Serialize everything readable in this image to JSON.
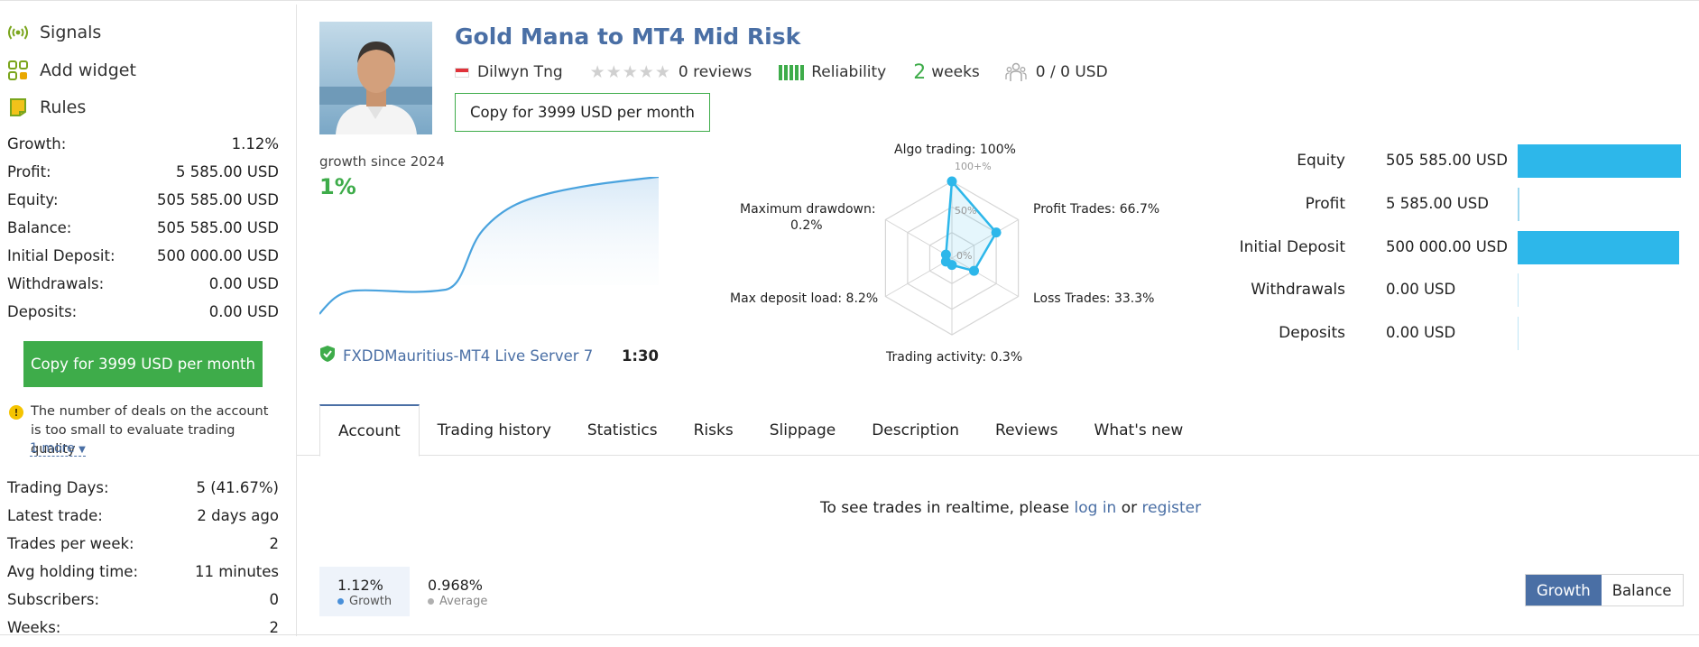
{
  "sidebar": {
    "nav": [
      {
        "label": "Signals",
        "icon": "signal-icon"
      },
      {
        "label": "Add widget",
        "icon": "widget-icon"
      },
      {
        "label": "Rules",
        "icon": "rules-icon"
      }
    ],
    "stats": [
      {
        "label": "Growth:",
        "value": "1.12%"
      },
      {
        "label": "Profit:",
        "value": "5 585.00 USD"
      },
      {
        "label": "Equity:",
        "value": "505 585.00 USD"
      },
      {
        "label": "Balance:",
        "value": "505 585.00 USD"
      },
      {
        "label": "Initial Deposit:",
        "value": "500 000.00 USD"
      },
      {
        "label": "Withdrawals:",
        "value": "0.00 USD"
      },
      {
        "label": "Deposits:",
        "value": "0.00 USD"
      }
    ],
    "copy_button": "Copy for 3999 USD per month",
    "warning": "The number of deals on the account is too small to evaluate trading quality",
    "more_link": "1 more",
    "stats2": [
      {
        "label": "Trading Days:",
        "value": "5 (41.67%)"
      },
      {
        "label": "Latest trade:",
        "value": "2 days ago"
      },
      {
        "label": "Trades per week:",
        "value": "2"
      },
      {
        "label": "Avg holding time:",
        "value": "11 minutes"
      },
      {
        "label": "Subscribers:",
        "value": "0"
      },
      {
        "label": "Weeks:",
        "value": "2"
      }
    ]
  },
  "header": {
    "title": "Gold Mana to MT4 Mid Risk",
    "author": "Dilwyn Tng",
    "reviews": "0 reviews",
    "reliability": "Reliability",
    "weeks_num": "2",
    "weeks_label": "weeks",
    "subscribers_funds": "0 / 0 USD",
    "copy_button": "Copy for 3999 USD per month"
  },
  "growth": {
    "label": "growth since 2024",
    "value": "1%",
    "server": "FXDDMauritius-MT4 Live Server 7",
    "leverage": "1:30"
  },
  "radar": {
    "labels": {
      "algo": "Algo trading: 100%",
      "profit": "Profit Trades: 66.7%",
      "loss": "Loss Trades: 33.3%",
      "activity": "Trading activity: 0.3%",
      "load": "Max deposit load: 8.2%",
      "drawdown1": "Maximum drawdown:",
      "drawdown2": "0.2%"
    },
    "scale": {
      "top": "100+%",
      "mid": "50%",
      "zero": "0%"
    },
    "values": [
      1.0,
      0.667,
      0.333,
      0.003,
      0.082,
      0.002
    ],
    "color": "#2db7ea"
  },
  "bars": [
    {
      "name": "Equity",
      "value": "505 585.00 USD",
      "fraction": 1.0
    },
    {
      "name": "Profit",
      "value": "5 585.00 USD",
      "fraction": 0.011
    },
    {
      "name": "Initial Deposit",
      "value": "500 000.00 USD",
      "fraction": 0.989
    },
    {
      "name": "Withdrawals",
      "value": "0.00 USD",
      "fraction": 0
    },
    {
      "name": "Deposits",
      "value": "0.00 USD",
      "fraction": 0
    }
  ],
  "tabs": [
    "Account",
    "Trading history",
    "Statistics",
    "Risks",
    "Slippage",
    "Description",
    "Reviews",
    "What's new"
  ],
  "realtime": {
    "prefix": "To see trades in realtime, please ",
    "login": "log in",
    "or": " or ",
    "register": "register"
  },
  "legend": {
    "growth_value": "1.12%",
    "growth_label": "Growth",
    "avg_value": "0.968%",
    "avg_label": "Average"
  },
  "toggle": {
    "growth": "Growth",
    "balance": "Balance"
  },
  "colors": {
    "green": "#3eac4a",
    "blue": "#4a6fa5",
    "cyan": "#2db7ea"
  }
}
